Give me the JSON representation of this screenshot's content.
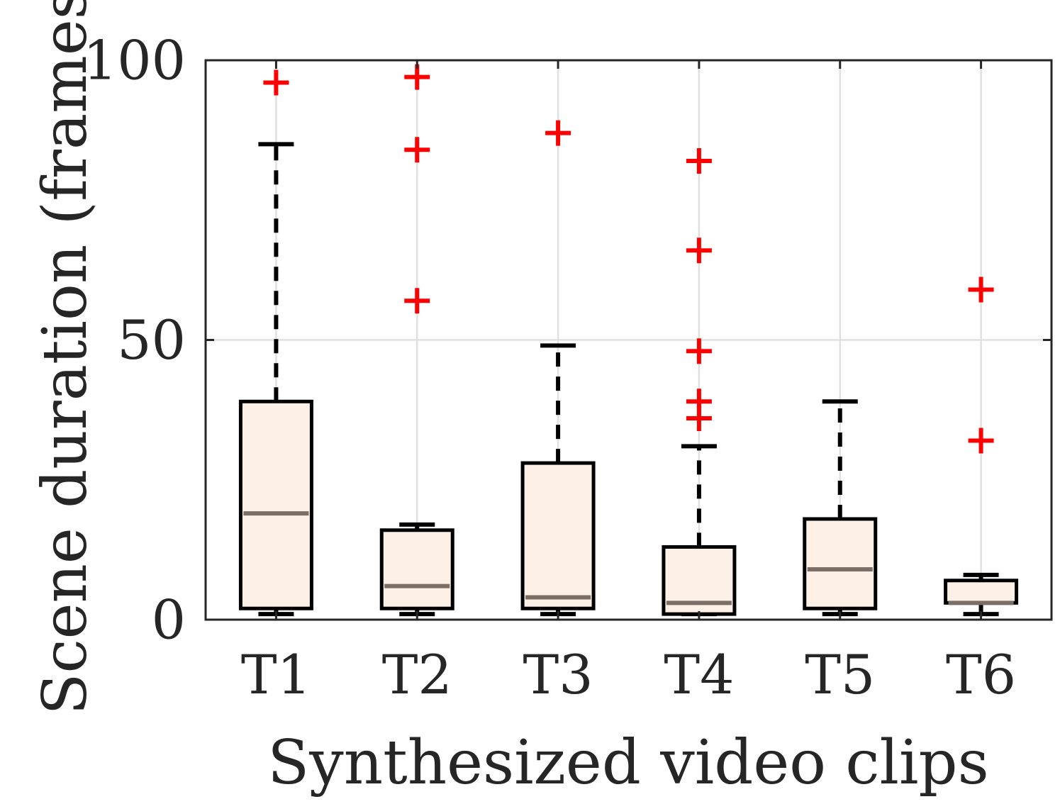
{
  "chart_data": {
    "type": "box",
    "xlabel": "Synthesized video clips",
    "ylabel": "Scene duration (frames)",
    "ylim": [
      0,
      100
    ],
    "yticks": [
      0,
      50,
      100
    ],
    "grid": true,
    "categories": [
      "T1",
      "T2",
      "T3",
      "T4",
      "T5",
      "T6"
    ],
    "boxes": [
      {
        "category": "T1",
        "whisker_low": 1,
        "q1": 2,
        "median": 19,
        "q3": 39,
        "whisker_high": 85,
        "outliers": [
          96
        ]
      },
      {
        "category": "T2",
        "whisker_low": 1,
        "q1": 2,
        "median": 6,
        "q3": 16,
        "whisker_high": 17,
        "outliers": [
          57,
          84,
          97
        ]
      },
      {
        "category": "T3",
        "whisker_low": 1,
        "q1": 2,
        "median": 4,
        "q3": 28,
        "whisker_high": 49,
        "outliers": [
          87
        ]
      },
      {
        "category": "T4",
        "whisker_low": 1,
        "q1": 1,
        "median": 3,
        "q3": 13,
        "whisker_high": 31,
        "outliers": [
          36,
          39,
          48,
          66,
          82
        ]
      },
      {
        "category": "T5",
        "whisker_low": 1,
        "q1": 2,
        "median": 9,
        "q3": 18,
        "whisker_high": 39,
        "outliers": []
      },
      {
        "category": "T6",
        "whisker_low": 1,
        "q1": 3,
        "median": 3,
        "q3": 7,
        "whisker_high": 8,
        "outliers": [
          32,
          59
        ]
      }
    ],
    "colors": {
      "box_fill": "#fdf0e6",
      "box_edge": "#000000",
      "median": "#7a6e66",
      "whisker": "#000000",
      "outlier": "#ff0000",
      "axis": "#262626",
      "grid": "#e0e0e0"
    }
  }
}
